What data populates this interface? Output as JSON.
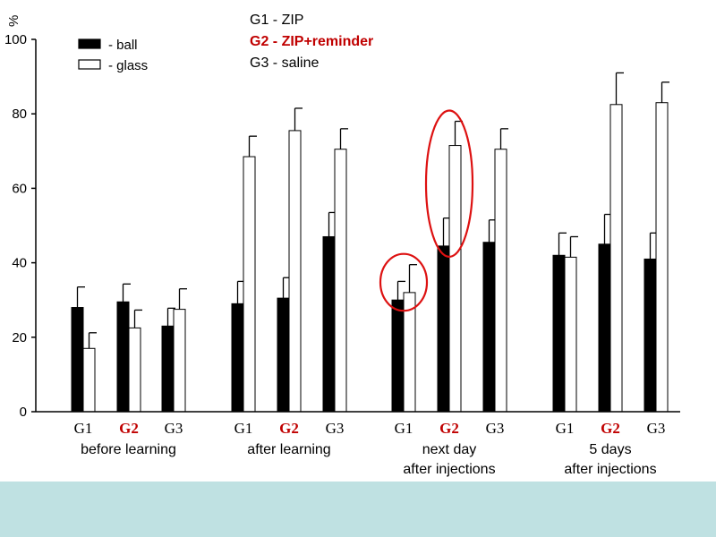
{
  "chart_data": {
    "type": "bar",
    "title": "",
    "xlabel": "",
    "ylabel": "%",
    "ylim": [
      0,
      100
    ],
    "yticks": [
      "0",
      "20",
      "40",
      "60",
      "80",
      "100"
    ],
    "grid": false,
    "legend_placement": "top-left",
    "legend": [
      {
        "label": "- ball",
        "color": "#000000"
      },
      {
        "label": "- glass",
        "color": "#ffffff"
      }
    ],
    "group_legend": [
      {
        "label": "G1 - ZIP",
        "color": "#000000",
        "bold": false
      },
      {
        "label": "G2 - ZIP+reminder",
        "color": "#c00000",
        "bold": true
      },
      {
        "label": "G3 - saline",
        "color": "#000000",
        "bold": false
      }
    ],
    "phases": [
      {
        "label_lines": [
          "before learning"
        ],
        "groups": [
          {
            "name": "G1",
            "ball": 28,
            "ball_err": 5.5,
            "glass": 17,
            "glass_err": 4.2
          },
          {
            "name": "G2",
            "ball": 29.5,
            "ball_err": 4.8,
            "glass": 22.5,
            "glass_err": 4.8
          },
          {
            "name": "G3",
            "ball": 23,
            "ball_err": 4.8,
            "glass": 27.5,
            "glass_err": 5.5
          }
        ]
      },
      {
        "label_lines": [
          "after learning"
        ],
        "groups": [
          {
            "name": "G1",
            "ball": 29,
            "ball_err": 6,
            "glass": 68.5,
            "glass_err": 5.5
          },
          {
            "name": "G2",
            "ball": 30.5,
            "ball_err": 5.5,
            "glass": 75.5,
            "glass_err": 6
          },
          {
            "name": "G3",
            "ball": 47,
            "ball_err": 6.5,
            "glass": 70.5,
            "glass_err": 5.5
          }
        ]
      },
      {
        "label_lines": [
          "next day",
          "after injections"
        ],
        "groups": [
          {
            "name": "G1",
            "ball": 30,
            "ball_err": 5,
            "glass": 32,
            "glass_err": 7.5
          },
          {
            "name": "G2",
            "ball": 44.5,
            "ball_err": 7.5,
            "glass": 71.5,
            "glass_err": 6.5
          },
          {
            "name": "G3",
            "ball": 45.5,
            "ball_err": 6,
            "glass": 70.5,
            "glass_err": 5.5
          }
        ]
      },
      {
        "label_lines": [
          "5 days",
          "after injections"
        ],
        "groups": [
          {
            "name": "G1",
            "ball": 42,
            "ball_err": 6,
            "glass": 41.5,
            "glass_err": 5.5
          },
          {
            "name": "G2",
            "ball": 45,
            "ball_err": 8,
            "glass": 82.5,
            "glass_err": 8.5
          },
          {
            "name": "G3",
            "ball": 41,
            "ball_err": 7,
            "glass": 83,
            "glass_err": 5.5
          }
        ]
      }
    ],
    "highlight_color": "#dd1111",
    "highlights": [
      {
        "phase": 2,
        "group": 0
      },
      {
        "phase": 2,
        "group": 1
      }
    ]
  }
}
